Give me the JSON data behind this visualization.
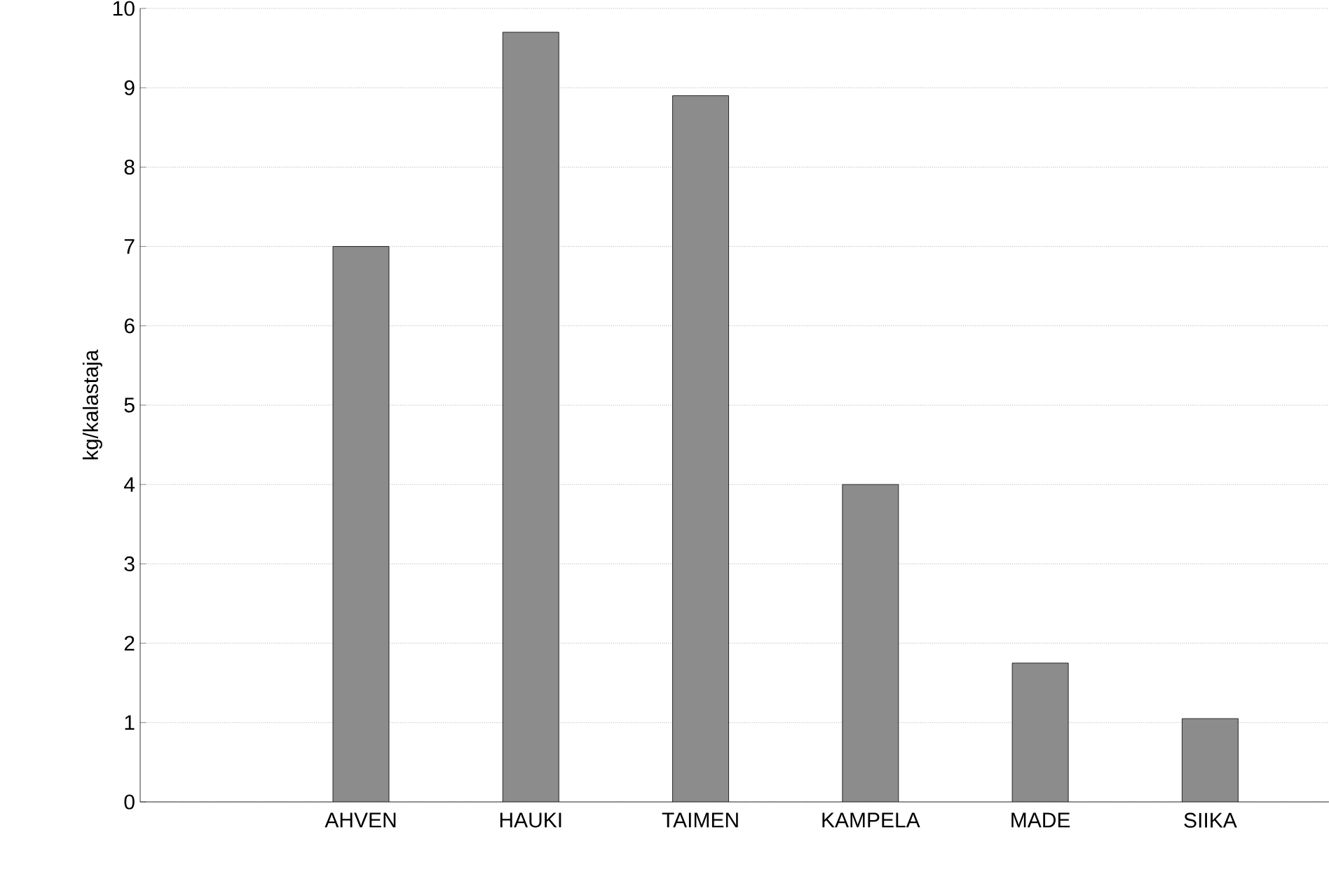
{
  "chart_data": {
    "type": "bar",
    "ylabel": "kg/kalastaja",
    "categories": [
      "AHVEN",
      "HAUKI",
      "TAIMEN",
      "KAMPELA",
      "MADE",
      "SIIKA"
    ],
    "values": [
      7.0,
      9.7,
      8.9,
      4.0,
      1.75,
      1.05
    ],
    "color": "#8c8c8c",
    "ylim": [
      0,
      10
    ],
    "yticks": [
      0,
      1,
      2,
      3,
      4,
      5,
      6,
      7,
      8,
      9,
      10
    ],
    "grid": "y"
  }
}
